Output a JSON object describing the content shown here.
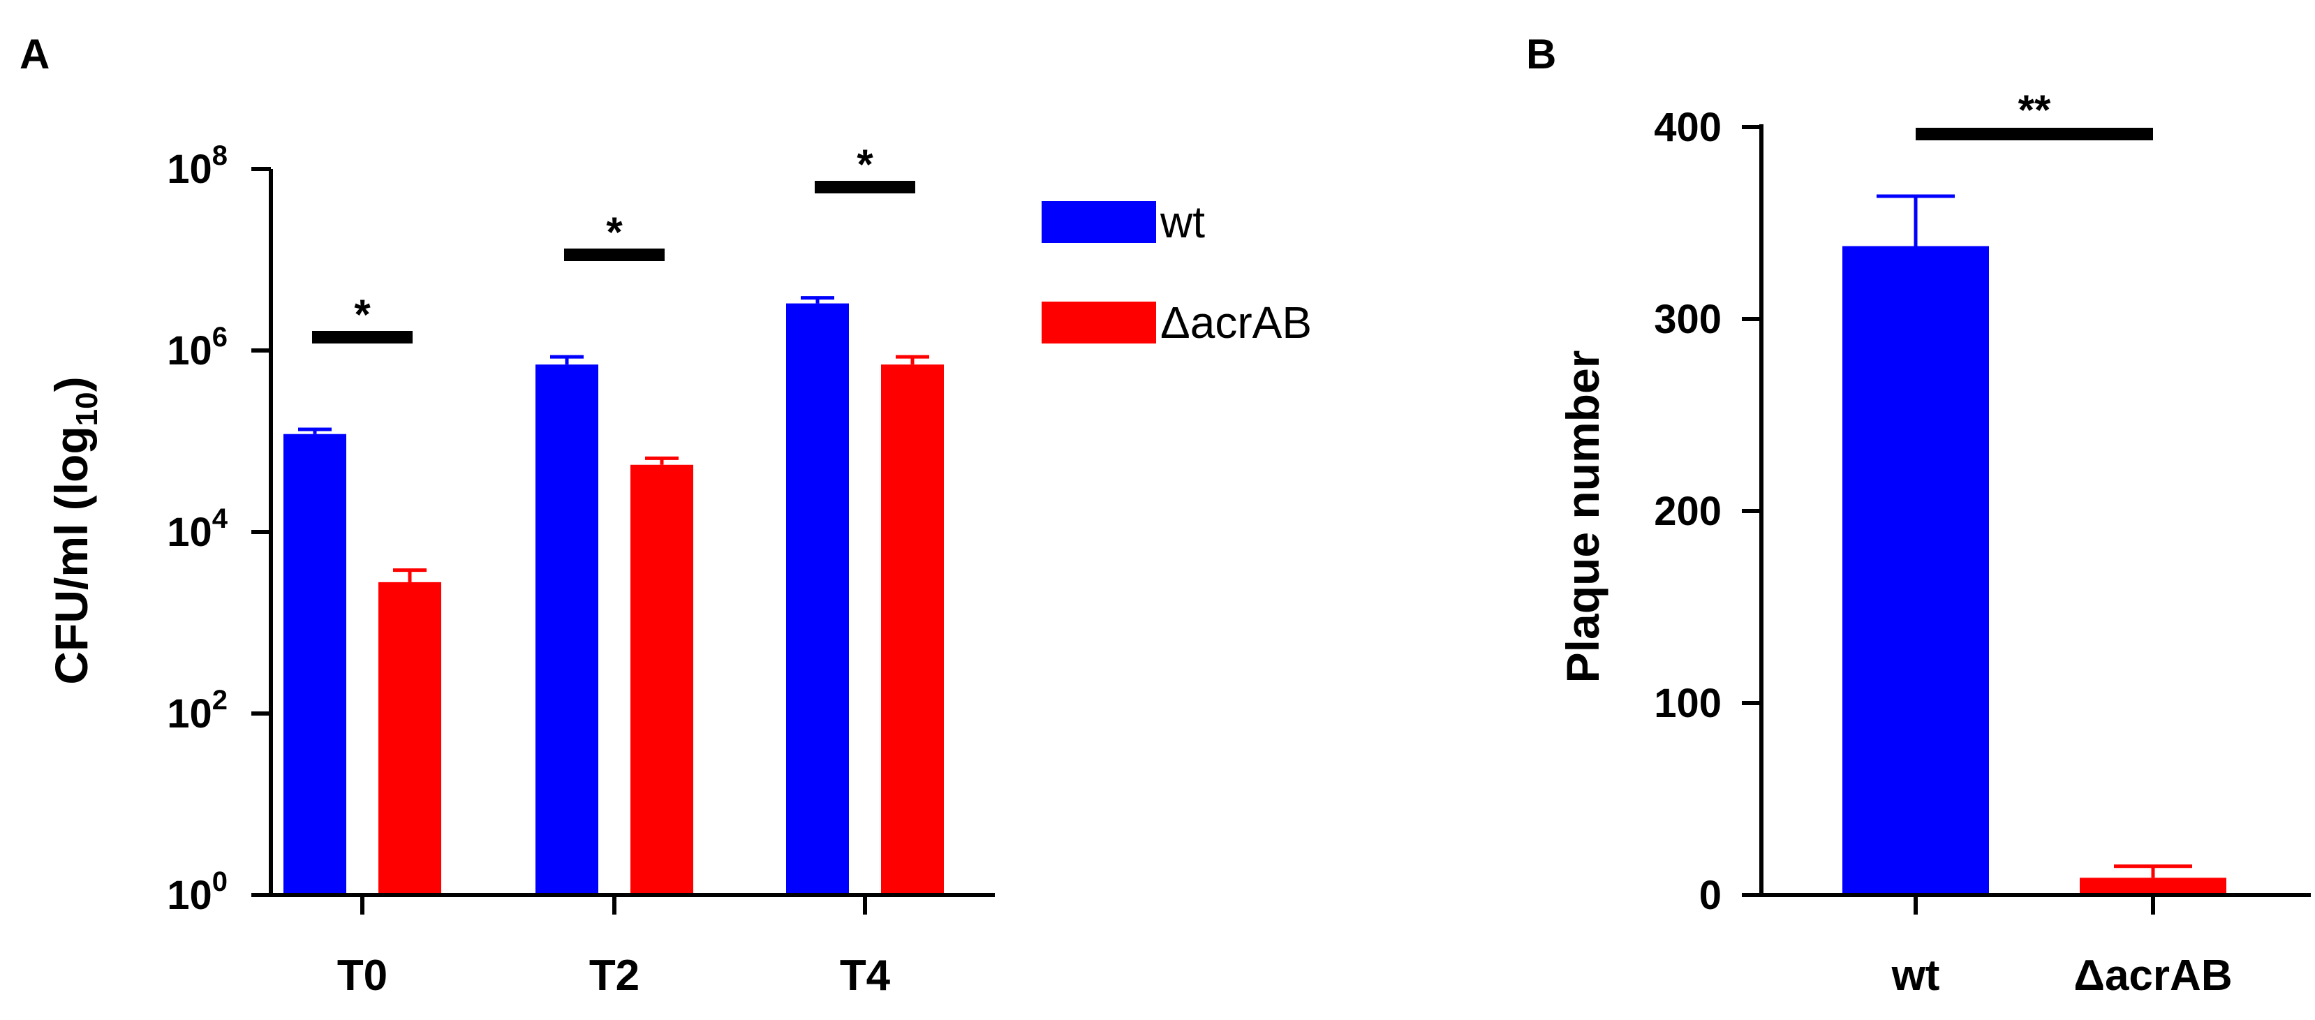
{
  "colors": {
    "wt": "#0000ff",
    "acrAB": "#ff0000",
    "axis": "#000000"
  },
  "panels": {
    "a_label": "A",
    "b_label": "B"
  },
  "chart_data": [
    {
      "type": "bar",
      "scale": "log10",
      "title": "",
      "ylabel": "CFU/ml (log",
      "ylabel_sub": "10",
      "ylabel_close": ")",
      "xlabel": "",
      "categories": [
        "T0",
        "T2",
        "T4"
      ],
      "ylim": [
        1,
        100000000
      ],
      "yticks": [
        {
          "value": 1,
          "base": "10",
          "exp": "0"
        },
        {
          "value": 100,
          "base": "10",
          "exp": "2"
        },
        {
          "value": 10000,
          "base": "10",
          "exp": "4"
        },
        {
          "value": 1000000,
          "base": "10",
          "exp": "6"
        },
        {
          "value": 100000000,
          "base": "10",
          "exp": "8"
        }
      ],
      "series": [
        {
          "name": "wt",
          "values": [
            120000,
            700000,
            3300000
          ],
          "errors": [
            135000,
            850000,
            3800000
          ]
        },
        {
          "name": "ΔacrAB",
          "values": [
            2800,
            55000,
            700000
          ],
          "errors": [
            3800,
            65000,
            850000
          ]
        }
      ],
      "significance": [
        "*",
        "*",
        "*"
      ],
      "legend": {
        "position": "right",
        "entries": [
          "wt",
          "ΔacrAB"
        ]
      }
    },
    {
      "type": "bar",
      "title": "",
      "ylabel": "Plaque number",
      "xlabel": "",
      "categories": [
        "wt",
        "ΔacrAB"
      ],
      "ylim": [
        0,
        400
      ],
      "yticks": [
        0,
        100,
        200,
        300,
        400
      ],
      "values": [
        338,
        9
      ],
      "errors": [
        364,
        15
      ],
      "significance": "**"
    }
  ]
}
